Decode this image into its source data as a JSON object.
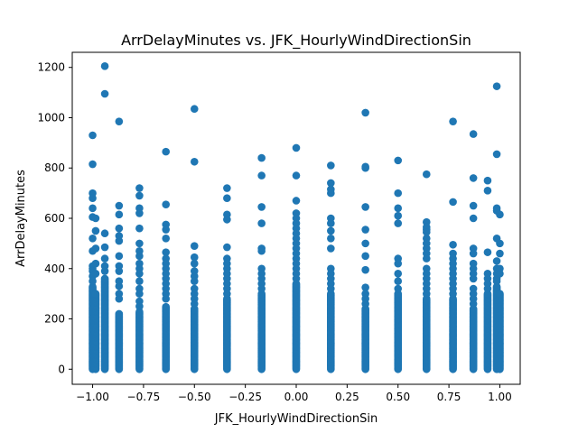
{
  "chart_data": {
    "type": "scatter",
    "title": "ArrDelayMinutes vs. JFK_HourlyWindDirectionSin",
    "xlabel": "JFK_HourlyWindDirectionSin",
    "ylabel": "ArrDelayMinutes",
    "xlim": [
      -1.1,
      1.1
    ],
    "ylim": [
      -60,
      1260
    ],
    "xticks": [
      -1.0,
      -0.75,
      -0.5,
      -0.25,
      0.0,
      0.25,
      0.5,
      0.75,
      1.0
    ],
    "xtick_labels": [
      "−1.00",
      "−0.75",
      "−0.50",
      "−0.25",
      "0.00",
      "0.25",
      "0.50",
      "0.75",
      "1.00"
    ],
    "yticks": [
      0,
      200,
      400,
      600,
      800,
      1000,
      1200
    ],
    "ytick_labels": [
      "0",
      "200",
      "400",
      "600",
      "800",
      "1000",
      "1200"
    ],
    "grid": false,
    "marker_color": "#1f77b4",
    "columns": [
      {
        "x": -1.0,
        "dense_max": 330,
        "outliers": [
          930,
          815,
          700,
          680,
          640,
          605,
          520,
          470,
          410,
          400,
          390,
          370,
          350
        ]
      },
      {
        "x": -0.985,
        "dense_max": 300,
        "outliers": [
          600,
          550,
          480,
          420,
          380
        ]
      },
      {
        "x": -0.94,
        "dense_max": 360,
        "outliers": [
          1205,
          1095,
          540,
          485,
          440,
          410,
          390
        ]
      },
      {
        "x": -0.87,
        "dense_max": 220,
        "outliers": [
          985,
          650,
          615,
          560,
          530,
          510,
          450,
          410,
          390,
          350,
          330,
          300,
          280
        ]
      },
      {
        "x": -0.77,
        "dense_max": 230,
        "outliers": [
          720,
          690,
          640,
          620,
          560,
          500,
          470,
          450,
          420,
          400,
          380,
          350,
          320,
          300,
          270,
          250
        ]
      },
      {
        "x": -0.64,
        "dense_max": 250,
        "outliers": [
          865,
          655,
          575,
          555,
          520,
          465,
          440,
          420,
          400,
          380,
          360,
          340,
          320,
          300,
          280
        ]
      },
      {
        "x": -0.5,
        "dense_max": 240,
        "outliers": [
          1035,
          825,
          490,
          445,
          420,
          390,
          370,
          350,
          320,
          300,
          280,
          260
        ]
      },
      {
        "x": -0.34,
        "dense_max": 280,
        "outliers": [
          720,
          680,
          615,
          595,
          485,
          440,
          420,
          400,
          380,
          360,
          340,
          320,
          300
        ]
      },
      {
        "x": -0.17,
        "dense_max": 300,
        "outliers": [
          840,
          770,
          645,
          580,
          480,
          470,
          400,
          380,
          360,
          340,
          320
        ]
      },
      {
        "x": 0.0,
        "dense_max": 340,
        "outliers": [
          880,
          770,
          670,
          620,
          600,
          580,
          560,
          540,
          520,
          500,
          480,
          460,
          440,
          420,
          400,
          380,
          360
        ]
      },
      {
        "x": 0.17,
        "dense_max": 300,
        "outliers": [
          810,
          740,
          715,
          700,
          600,
          580,
          550,
          520,
          480,
          400,
          380,
          360,
          340,
          320
        ]
      },
      {
        "x": 0.34,
        "dense_max": 240,
        "outliers": [
          1020,
          805,
          800,
          645,
          555,
          500,
          450,
          395,
          325,
          300,
          280,
          260
        ]
      },
      {
        "x": 0.5,
        "dense_max": 300,
        "outliers": [
          830,
          700,
          640,
          610,
          580,
          440,
          420,
          380,
          350,
          320
        ]
      },
      {
        "x": 0.64,
        "dense_max": 280,
        "outliers": [
          775,
          585,
          565,
          555,
          545,
          520,
          500,
          480,
          460,
          440,
          400,
          380,
          360,
          340,
          320,
          300
        ]
      },
      {
        "x": 0.77,
        "dense_max": 280,
        "outliers": [
          985,
          665,
          495,
          460,
          440,
          420,
          400,
          380,
          360,
          340,
          320,
          300
        ]
      },
      {
        "x": 0.87,
        "dense_max": 240,
        "outliers": [
          935,
          760,
          650,
          600,
          480,
          460,
          420,
          400,
          380,
          360,
          320,
          300,
          280,
          260
        ]
      },
      {
        "x": 0.94,
        "dense_max": 300,
        "outliers": [
          750,
          710,
          465,
          380,
          360,
          340,
          320
        ]
      },
      {
        "x": 0.985,
        "dense_max": 330,
        "outliers": [
          1125,
          855,
          640,
          630,
          520,
          430,
          400,
          380,
          360,
          350
        ]
      },
      {
        "x": 1.0,
        "dense_max": 300,
        "outliers": [
          615,
          500,
          460,
          400,
          380
        ]
      }
    ]
  }
}
